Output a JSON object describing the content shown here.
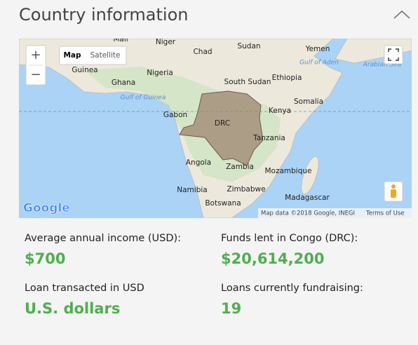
{
  "header": {
    "title": "Country information"
  },
  "map": {
    "labels": [
      "Mali",
      "Niger",
      "Chad",
      "Sudan",
      "Yemen",
      "Guinea",
      "Nigeria",
      "Ghana",
      "South Sudan",
      "Ethiopia",
      "Gabon",
      "Somalia",
      "Kenya",
      "DRC",
      "Tanzania",
      "Angola",
      "Zambia",
      "Mozambique",
      "Namibia",
      "Zimbabwe",
      "Madagascar",
      "Botswana"
    ],
    "water_labels": [
      "Gulf of Aden",
      "Arabian Sea",
      "Gulf of Guinea"
    ],
    "controls": {
      "zoom_in": "+",
      "zoom_out": "−",
      "map": "Map",
      "satellite": "Satellite"
    },
    "logo": "Google",
    "attribution": "Map data ©2018 Google, INEGI",
    "terms": "Terms of Use"
  },
  "stats": [
    {
      "label": "Average annual income (USD):",
      "value": "$700"
    },
    {
      "label": "Funds lent in Congo (DRC):",
      "value": "$20,614,200"
    },
    {
      "label": "Loan transacted in USD",
      "value": "U.S. dollars"
    },
    {
      "label": "Loans currently fundraising:",
      "value": "19"
    }
  ]
}
